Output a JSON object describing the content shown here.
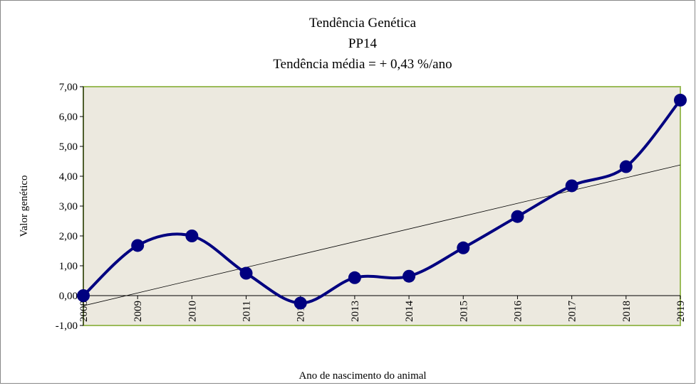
{
  "chart_data": {
    "type": "line",
    "title": "Tendência Genética",
    "subtitle": "PP14",
    "annotation": "Tendência média =  + 0,43 %/ano",
    "x_label": "Ano de nascimento do animal",
    "y_label": "Valor genético",
    "categories": [
      "2008",
      "2009",
      "2010",
      "2011",
      "2012",
      "2013",
      "2014",
      "2015",
      "2016",
      "2017",
      "2018",
      "2019"
    ],
    "series": [
      {
        "name": "PP14",
        "color": "#000080",
        "values": [
          0.0,
          1.68,
          2.0,
          0.75,
          -0.25,
          0.6,
          0.65,
          1.6,
          2.65,
          3.68,
          4.32,
          6.55
        ]
      }
    ],
    "trendline": true,
    "ylim": [
      -1,
      7
    ],
    "yticks": [
      {
        "value": -1,
        "label": "-1,00"
      },
      {
        "value": 0,
        "label": "0,00"
      },
      {
        "value": 1,
        "label": "1,00"
      },
      {
        "value": 2,
        "label": "2,00"
      },
      {
        "value": 3,
        "label": "3,00"
      },
      {
        "value": 4,
        "label": "4,00"
      },
      {
        "value": 5,
        "label": "5,00"
      },
      {
        "value": 6,
        "label": "6,00"
      },
      {
        "value": 7,
        "label": "7,00"
      }
    ]
  }
}
